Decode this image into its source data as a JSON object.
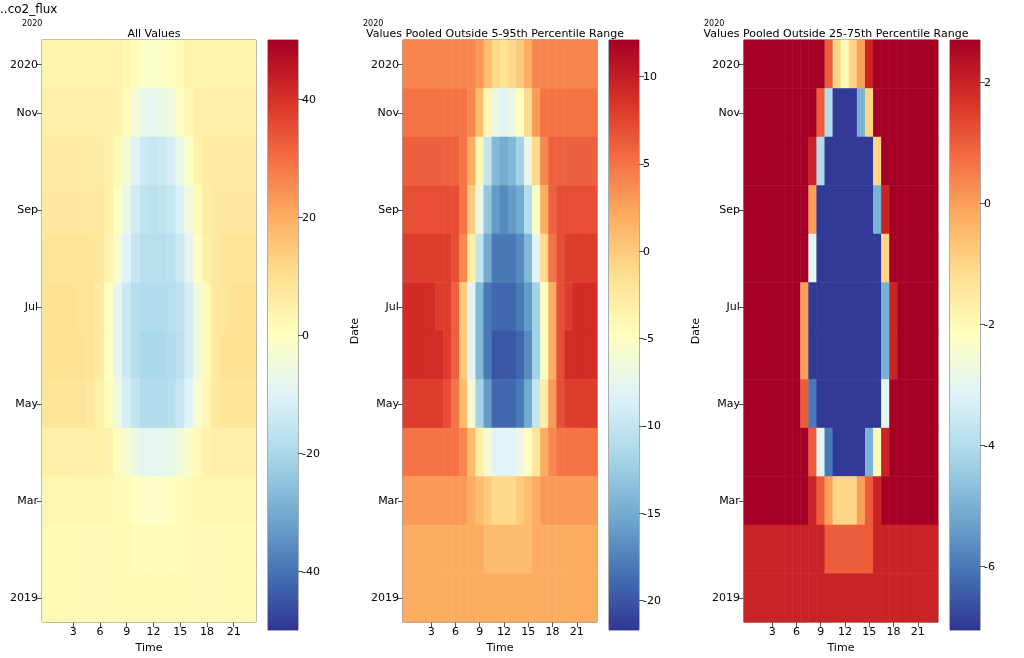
{
  "chart_data": [
    {
      "type": "heatmap",
      "title": "All Values",
      "xlabel": "Time",
      "annotations": [
        "..co2_flux",
        "2020"
      ],
      "categories": [
        null,
        null,
        null,
        "3",
        null,
        null,
        "6",
        null,
        null,
        "9",
        null,
        null,
        "12",
        null,
        null,
        "15",
        null,
        null,
        "18",
        null,
        null,
        "21",
        null,
        null
      ],
      "y_categories": [
        "2020",
        "Nov",
        null,
        "Sep",
        null,
        "Jul",
        null,
        "May",
        null,
        "Mar",
        null,
        "2019"
      ],
      "clim": [
        -50,
        50
      ],
      "cticks": [
        -40,
        -20,
        0,
        20,
        40
      ],
      "colors": [
        "#313695",
        "#4575b4",
        "#74add1",
        "#abd9e9",
        "#e0f3f8",
        "#ffffbf",
        "#fee090",
        "#fdae61",
        "#f46d43",
        "#d73027",
        "#a50026"
      ],
      "cells": [
        [
          4,
          4,
          4,
          4,
          4,
          4,
          4,
          4,
          4,
          3,
          1,
          -1,
          -2,
          -1,
          0,
          2,
          4,
          4,
          4,
          4,
          4,
          4,
          4,
          4
        ],
        [
          5,
          5,
          5,
          5,
          5,
          5,
          5,
          5,
          4,
          1,
          -4,
          -7,
          -8,
          -7,
          -5,
          -1,
          3,
          5,
          5,
          5,
          5,
          5,
          5,
          5
        ],
        [
          6,
          6,
          6,
          6,
          6,
          6,
          6,
          5,
          2,
          -4,
          -10,
          -14,
          -15,
          -14,
          -12,
          -7,
          -1,
          4,
          6,
          6,
          6,
          6,
          6,
          6
        ],
        [
          7,
          7,
          7,
          7,
          7,
          7,
          7,
          5,
          0,
          -7,
          -13,
          -16,
          -17,
          -16,
          -15,
          -11,
          -5,
          2,
          6,
          7,
          7,
          7,
          7,
          7
        ],
        [
          8,
          8,
          8,
          8,
          8,
          8,
          7,
          4,
          -3,
          -10,
          -15,
          -18,
          -18,
          -18,
          -17,
          -14,
          -8,
          -1,
          5,
          7,
          8,
          8,
          8,
          8
        ],
        [
          9,
          9,
          9,
          9,
          8,
          8,
          6,
          0,
          -8,
          -14,
          -18,
          -19,
          -19,
          -19,
          -18,
          -16,
          -12,
          -5,
          2,
          7,
          8,
          9,
          9,
          9
        ],
        [
          9,
          9,
          9,
          9,
          9,
          8,
          6,
          0,
          -8,
          -14,
          -18,
          -20,
          -20,
          -20,
          -19,
          -17,
          -12,
          -5,
          2,
          7,
          9,
          9,
          9,
          9
        ],
        [
          8,
          8,
          8,
          8,
          8,
          7,
          5,
          1,
          -6,
          -12,
          -16,
          -19,
          -19,
          -19,
          -18,
          -15,
          -10,
          -3,
          3,
          7,
          8,
          8,
          8,
          8
        ],
        [
          5,
          5,
          5,
          5,
          5,
          5,
          5,
          4,
          1,
          -3,
          -6,
          -8,
          -8,
          -8,
          -7,
          -5,
          -2,
          2,
          4,
          5,
          5,
          5,
          5,
          5
        ],
        [
          3,
          3,
          3,
          3,
          3,
          3,
          3,
          3,
          2,
          1,
          0,
          -1,
          -1,
          -1,
          0,
          1,
          2,
          3,
          3,
          3,
          3,
          3,
          3,
          3
        ],
        [
          2,
          2,
          2,
          2,
          2,
          2,
          2,
          2,
          2,
          2,
          1,
          1,
          1,
          1,
          1,
          1,
          2,
          2,
          2,
          2,
          2,
          2,
          2,
          2
        ],
        [
          2,
          2,
          2,
          2,
          2,
          2,
          2,
          2,
          2,
          2,
          2,
          2,
          2,
          2,
          2,
          2,
          2,
          2,
          2,
          2,
          2,
          2,
          2,
          2
        ]
      ]
    },
    {
      "type": "heatmap",
      "title": "Values Pooled Outside 5-95th Percentile Range",
      "xlabel": "Time",
      "ylabel": "Date",
      "annotations": [
        "2020"
      ],
      "categories": [
        null,
        null,
        null,
        "3",
        null,
        null,
        "6",
        null,
        null,
        "9",
        null,
        null,
        "12",
        null,
        null,
        "15",
        null,
        null,
        "18",
        null,
        null,
        "21",
        null,
        null
      ],
      "y_categories": [
        "2020",
        "Nov",
        null,
        "Sep",
        null,
        "Jul",
        null,
        "May",
        null,
        "Mar",
        null,
        "2019"
      ],
      "clim": [
        -21.7,
        12.1
      ],
      "cticks": [
        -20,
        -15,
        -10,
        -5,
        0,
        5,
        10
      ],
      "colors": [
        "#313695",
        "#4575b4",
        "#74add1",
        "#abd9e9",
        "#e0f3f8",
        "#ffffbf",
        "#fee090",
        "#fdae61",
        "#f46d43",
        "#d73027",
        "#a50026"
      ],
      "cells": [
        [
          4,
          4,
          4,
          4,
          4,
          4,
          4,
          4,
          4,
          3,
          1,
          -1,
          -2,
          -1,
          0,
          2,
          4,
          4,
          4,
          4,
          4,
          4,
          4,
          4
        ],
        [
          5,
          5,
          5,
          5,
          5,
          5,
          5,
          5,
          4,
          1,
          -4,
          -7,
          -8,
          -7,
          -5,
          -1,
          3,
          5,
          5,
          5,
          5,
          5,
          5,
          5
        ],
        [
          6,
          6,
          6,
          6,
          6,
          6,
          6,
          5,
          2,
          -4,
          -10,
          -14,
          -15,
          -14,
          -12,
          -7,
          -1,
          4,
          6,
          6,
          6,
          6,
          6,
          6
        ],
        [
          7,
          7,
          7,
          7,
          7,
          7,
          7,
          5,
          0,
          -7,
          -13,
          -16,
          -17,
          -16,
          -15,
          -11,
          -5,
          2,
          6,
          7,
          7,
          7,
          7,
          7
        ],
        [
          8,
          8,
          8,
          8,
          8,
          8,
          7,
          4,
          -3,
          -10,
          -15,
          -18,
          -18,
          -18,
          -17,
          -14,
          -8,
          -1,
          5,
          7,
          8,
          8,
          8,
          8
        ],
        [
          9,
          9,
          9,
          9,
          8,
          8,
          6,
          0,
          -8,
          -14,
          -18,
          -19,
          -19,
          -19,
          -18,
          -16,
          -12,
          -5,
          2,
          7,
          8,
          9,
          9,
          9
        ],
        [
          9,
          9,
          9,
          9,
          9,
          8,
          6,
          0,
          -8,
          -14,
          -18,
          -20,
          -20,
          -20,
          -19,
          -17,
          -12,
          -5,
          2,
          7,
          9,
          9,
          9,
          9
        ],
        [
          8,
          8,
          8,
          8,
          8,
          7,
          5,
          1,
          -6,
          -12,
          -16,
          -19,
          -19,
          -19,
          -18,
          -15,
          -10,
          -3,
          3,
          7,
          8,
          8,
          8,
          8
        ],
        [
          5,
          5,
          5,
          5,
          5,
          5,
          5,
          4,
          1,
          -3,
          -6,
          -8,
          -8,
          -8,
          -7,
          -5,
          -2,
          2,
          4,
          5,
          5,
          5,
          5,
          5
        ],
        [
          3,
          3,
          3,
          3,
          3,
          3,
          3,
          3,
          2,
          1,
          0,
          -1,
          -1,
          -1,
          0,
          1,
          2,
          3,
          3,
          3,
          3,
          3,
          3,
          3
        ],
        [
          2,
          2,
          2,
          2,
          2,
          2,
          2,
          2,
          2,
          2,
          1,
          1,
          1,
          1,
          1,
          1,
          2,
          2,
          2,
          2,
          2,
          2,
          2,
          2
        ],
        [
          2,
          2,
          2,
          2,
          2,
          2,
          2,
          2,
          2,
          2,
          2,
          2,
          2,
          2,
          2,
          2,
          2,
          2,
          2,
          2,
          2,
          2,
          2,
          2
        ]
      ]
    },
    {
      "type": "heatmap",
      "title": "Values Pooled Outside 25-75th Percentile Range",
      "xlabel": "Time",
      "ylabel": "Date",
      "annotations": [
        "2020"
      ],
      "categories": [
        null,
        null,
        null,
        "3",
        null,
        null,
        "6",
        null,
        null,
        "9",
        null,
        null,
        "12",
        null,
        null,
        "15",
        null,
        null,
        "18",
        null,
        null,
        "21",
        null,
        null
      ],
      "y_categories": [
        "2020",
        "Nov",
        null,
        "Sep",
        null,
        "Jul",
        null,
        "May",
        null,
        "Mar",
        null,
        "2019"
      ],
      "clim": [
        -7.05,
        2.7
      ],
      "cticks": [
        -6,
        -4,
        -2,
        0,
        2
      ],
      "colors": [
        "#313695",
        "#4575b4",
        "#74add1",
        "#abd9e9",
        "#e0f3f8",
        "#ffffbf",
        "#fee090",
        "#fdae61",
        "#f46d43",
        "#d73027",
        "#a50026"
      ],
      "cells": [
        [
          2.7,
          2.7,
          2.7,
          2.7,
          2.7,
          2.7,
          2.7,
          2.7,
          2.7,
          2.7,
          1,
          -1,
          -2,
          -1,
          0,
          2,
          2.7,
          2.7,
          2.7,
          2.7,
          2.7,
          2.7,
          2.7,
          2.7
        ],
        [
          2.7,
          2.7,
          2.7,
          2.7,
          2.7,
          2.7,
          2.7,
          2.7,
          2.7,
          1,
          -4,
          -7,
          -7,
          -7,
          -5,
          -1,
          2.7,
          2.7,
          2.7,
          2.7,
          2.7,
          2.7,
          2.7,
          2.7
        ],
        [
          2.7,
          2.7,
          2.7,
          2.7,
          2.7,
          2.7,
          2.7,
          2.7,
          2,
          -4,
          -7,
          -7,
          -7,
          -7,
          -7,
          -7,
          -1,
          2.7,
          2.7,
          2.7,
          2.7,
          2.7,
          2.7,
          2.7
        ],
        [
          2.7,
          2.7,
          2.7,
          2.7,
          2.7,
          2.7,
          2.7,
          2.7,
          0,
          -7,
          -7,
          -7,
          -7,
          -7,
          -7,
          -7,
          -5,
          2,
          2.7,
          2.7,
          2.7,
          2.7,
          2.7,
          2.7
        ],
        [
          2.7,
          2.7,
          2.7,
          2.7,
          2.7,
          2.7,
          2.7,
          2.7,
          -3,
          -7,
          -7,
          -7,
          -7,
          -7,
          -7,
          -7,
          -7,
          -1,
          2.7,
          2.7,
          2.7,
          2.7,
          2.7,
          2.7
        ],
        [
          2.7,
          2.7,
          2.7,
          2.7,
          2.7,
          2.7,
          2.7,
          0,
          -7,
          -7,
          -7,
          -7,
          -7,
          -7,
          -7,
          -7,
          -7,
          -5,
          2,
          2.7,
          2.7,
          2.7,
          2.7,
          2.7
        ],
        [
          2.7,
          2.7,
          2.7,
          2.7,
          2.7,
          2.7,
          2.7,
          0,
          -7,
          -7,
          -7,
          -7,
          -7,
          -7,
          -7,
          -7,
          -7,
          -5,
          2,
          2.7,
          2.7,
          2.7,
          2.7,
          2.7
        ],
        [
          2.7,
          2.7,
          2.7,
          2.7,
          2.7,
          2.7,
          2.7,
          1,
          -6,
          -7,
          -7,
          -7,
          -7,
          -7,
          -7,
          -7,
          -7,
          -3,
          2.7,
          2.7,
          2.7,
          2.7,
          2.7,
          2.7
        ],
        [
          2.7,
          2.7,
          2.7,
          2.7,
          2.7,
          2.7,
          2.7,
          2.7,
          1,
          -3,
          -6,
          -7,
          -7,
          -7,
          -7,
          -5,
          -2,
          2,
          2.7,
          2.7,
          2.7,
          2.7,
          2.7,
          2.7
        ],
        [
          2.7,
          2.7,
          2.7,
          2.7,
          2.7,
          2.7,
          2.7,
          2.7,
          2,
          1,
          0,
          -1,
          -1,
          -1,
          0,
          1,
          2,
          2.7,
          2.7,
          2.7,
          2.7,
          2.7,
          2.7,
          2.7
        ],
        [
          2,
          2,
          2,
          2,
          2,
          2,
          2,
          2,
          2,
          2,
          1,
          1,
          1,
          1,
          1,
          1,
          2,
          2,
          2,
          2,
          2,
          2,
          2,
          2
        ],
        [
          2,
          2,
          2,
          2,
          2,
          2,
          2,
          2,
          2,
          2,
          2,
          2,
          2,
          2,
          2,
          2,
          2,
          2,
          2,
          2,
          2,
          2,
          2,
          2
        ]
      ]
    }
  ]
}
